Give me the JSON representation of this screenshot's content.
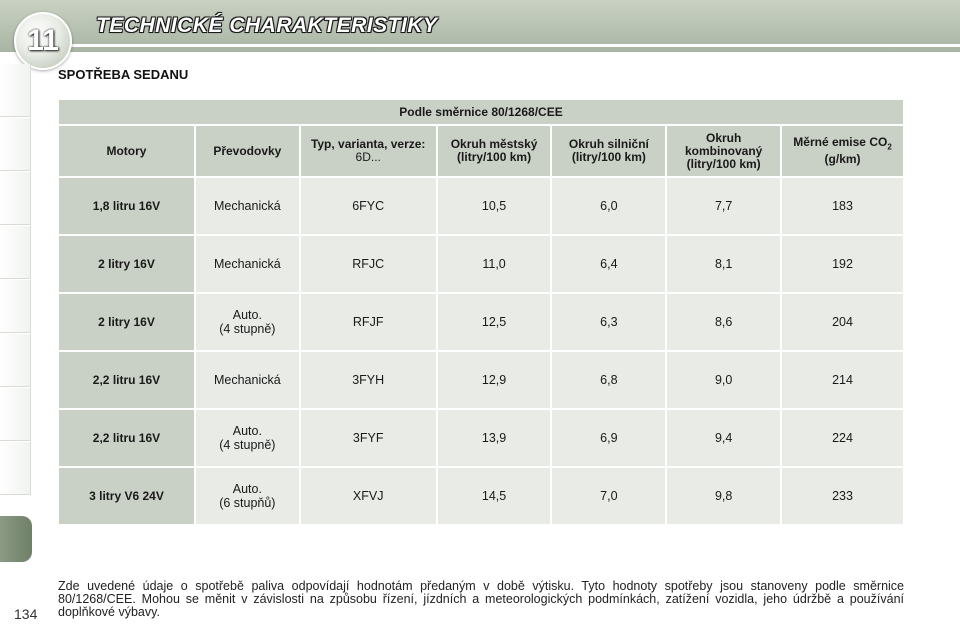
{
  "header": {
    "chapter_number": "11",
    "chapter_title": "TECHNICKÉ CHARAKTERISTIKY"
  },
  "section_title": "SPOTŘEBA SEDANU",
  "table": {
    "caption": "Podle směrnice 80/1268/CEE",
    "columns": {
      "engine": "Motory",
      "gearbox": "Převodovky",
      "type_bold": "Typ, varianta, verze:",
      "type_light": "6D...",
      "urban": "Okruh městský (litry/100 km)",
      "extra_urban": "Okruh silniční (litry/100 km)",
      "combined": "Okruh kombinovaný (litry/100 km)",
      "co2_pre": "Měrné emise CO",
      "co2_sub": "2",
      "co2_post": " (g/km)"
    },
    "rows": [
      {
        "engine": "1,8 litru 16V",
        "gearbox": "Mechanická",
        "type": "6FYC",
        "urban": "10,5",
        "extra_urban": "6,0",
        "combined": "7,7",
        "co2": "183"
      },
      {
        "engine": "2 litry 16V",
        "gearbox": "Mechanická",
        "type": "RFJC",
        "urban": "11,0",
        "extra_urban": "6,4",
        "combined": "8,1",
        "co2": "192"
      },
      {
        "engine": "2 litry 16V",
        "gearbox": "Auto.\n(4 stupně)",
        "type": "RFJF",
        "urban": "12,5",
        "extra_urban": "6,3",
        "combined": "8,6",
        "co2": "204"
      },
      {
        "engine": "2,2 litru 16V",
        "gearbox": "Mechanická",
        "type": "3FYH",
        "urban": "12,9",
        "extra_urban": "6,8",
        "combined": "9,0",
        "co2": "214"
      },
      {
        "engine": "2,2 litru 16V",
        "gearbox": "Auto.\n(4 stupně)",
        "type": "3FYF",
        "urban": "13,9",
        "extra_urban": "6,9",
        "combined": "9,4",
        "co2": "224"
      },
      {
        "engine": "3 litry V6 24V",
        "gearbox": "Auto.\n(6 stupňů)",
        "type": "XFVJ",
        "urban": "14,5",
        "extra_urban": "7,0",
        "combined": "9,8",
        "co2": "233"
      }
    ]
  },
  "footnote": "Zde uvedené údaje o spotřebě paliva odpovídají hodnotám předaným v době výtisku. Tyto hodnoty spotřeby jsou stanoveny podle směrnice 80/1268/CEE. Mohou se měnit v závislosti na způsobu řízení, jízdních a meteorologických podmínkách, zatížení vozidla, jeho údržbě a používání doplňkové výbavy.",
  "page_number": "134"
}
